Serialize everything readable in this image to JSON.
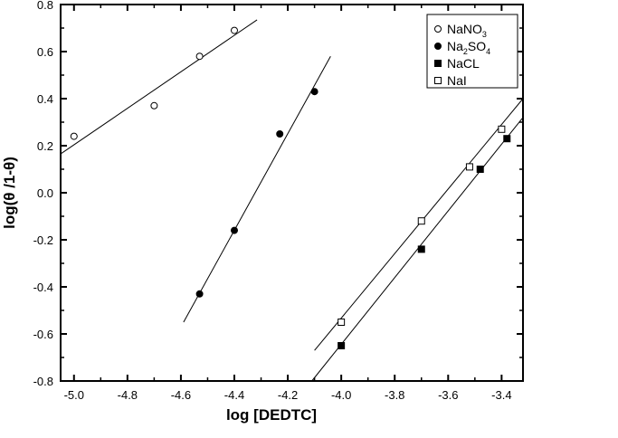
{
  "chart_data": {
    "type": "scatter",
    "title": "",
    "xlabel": "log [DEDTC]",
    "ylabel": "log(θ /1-θ)",
    "xlim": [
      -5.05,
      -3.32
    ],
    "ylim": [
      -0.8,
      0.8
    ],
    "xticks": [
      "-5.0",
      "-4.8",
      "-4.6",
      "-4.4",
      "-4.2",
      "-4.0",
      "-3.8",
      "-3.6",
      "-3.4"
    ],
    "xtick_values": [
      -5.0,
      -4.8,
      -4.6,
      -4.4,
      -4.2,
      -4.0,
      -3.8,
      -3.6,
      -3.4
    ],
    "yticks": [
      "-0.8",
      "-0.6",
      "-0.4",
      "-0.2",
      "0.0",
      "0.2",
      "0.4",
      "0.6",
      "0.8"
    ],
    "ytick_values": [
      -0.8,
      -0.6,
      -0.4,
      -0.2,
      0.0,
      0.2,
      0.4,
      0.6,
      0.8
    ],
    "grid": false,
    "legend_position": "top-right",
    "series": [
      {
        "name": "NaNO3",
        "legend_main": "NaNO",
        "legend_sub": "3",
        "legend_tail": "",
        "marker": "open-circle",
        "x": [
          -5.0,
          -4.7,
          -4.53,
          -4.4
        ],
        "y": [
          0.24,
          0.37,
          0.58,
          0.69
        ],
        "fit": {
          "x": [
            -5.05,
            -4.315
          ],
          "y": [
            0.165,
            0.735
          ]
        }
      },
      {
        "name": "Na2SO4",
        "legend_main": "Na",
        "legend_sub": "2",
        "legend_tail": "SO",
        "legend_sub2": "4",
        "marker": "filled-circle",
        "x": [
          -4.53,
          -4.4,
          -4.23,
          -4.1
        ],
        "y": [
          -0.43,
          -0.16,
          0.25,
          0.43
        ],
        "fit": {
          "x": [
            -4.59,
            -4.04
          ],
          "y": [
            -0.55,
            0.58
          ]
        }
      },
      {
        "name": "NaCL",
        "legend_main": "NaCL",
        "marker": "filled-square",
        "x": [
          -4.0,
          -3.7,
          -3.48,
          -3.38
        ],
        "y": [
          -0.65,
          -0.24,
          0.1,
          0.23
        ],
        "fit": {
          "x": [
            -4.11,
            -3.32
          ],
          "y": [
            -0.8,
            0.32
          ]
        }
      },
      {
        "name": "NaI",
        "legend_main": "NaI",
        "marker": "open-square",
        "x": [
          -4.0,
          -3.7,
          -3.52,
          -3.4
        ],
        "y": [
          -0.55,
          -0.12,
          0.11,
          0.27
        ],
        "fit": {
          "x": [
            -4.1,
            -3.32
          ],
          "y": [
            -0.67,
            0.4
          ]
        }
      }
    ]
  }
}
